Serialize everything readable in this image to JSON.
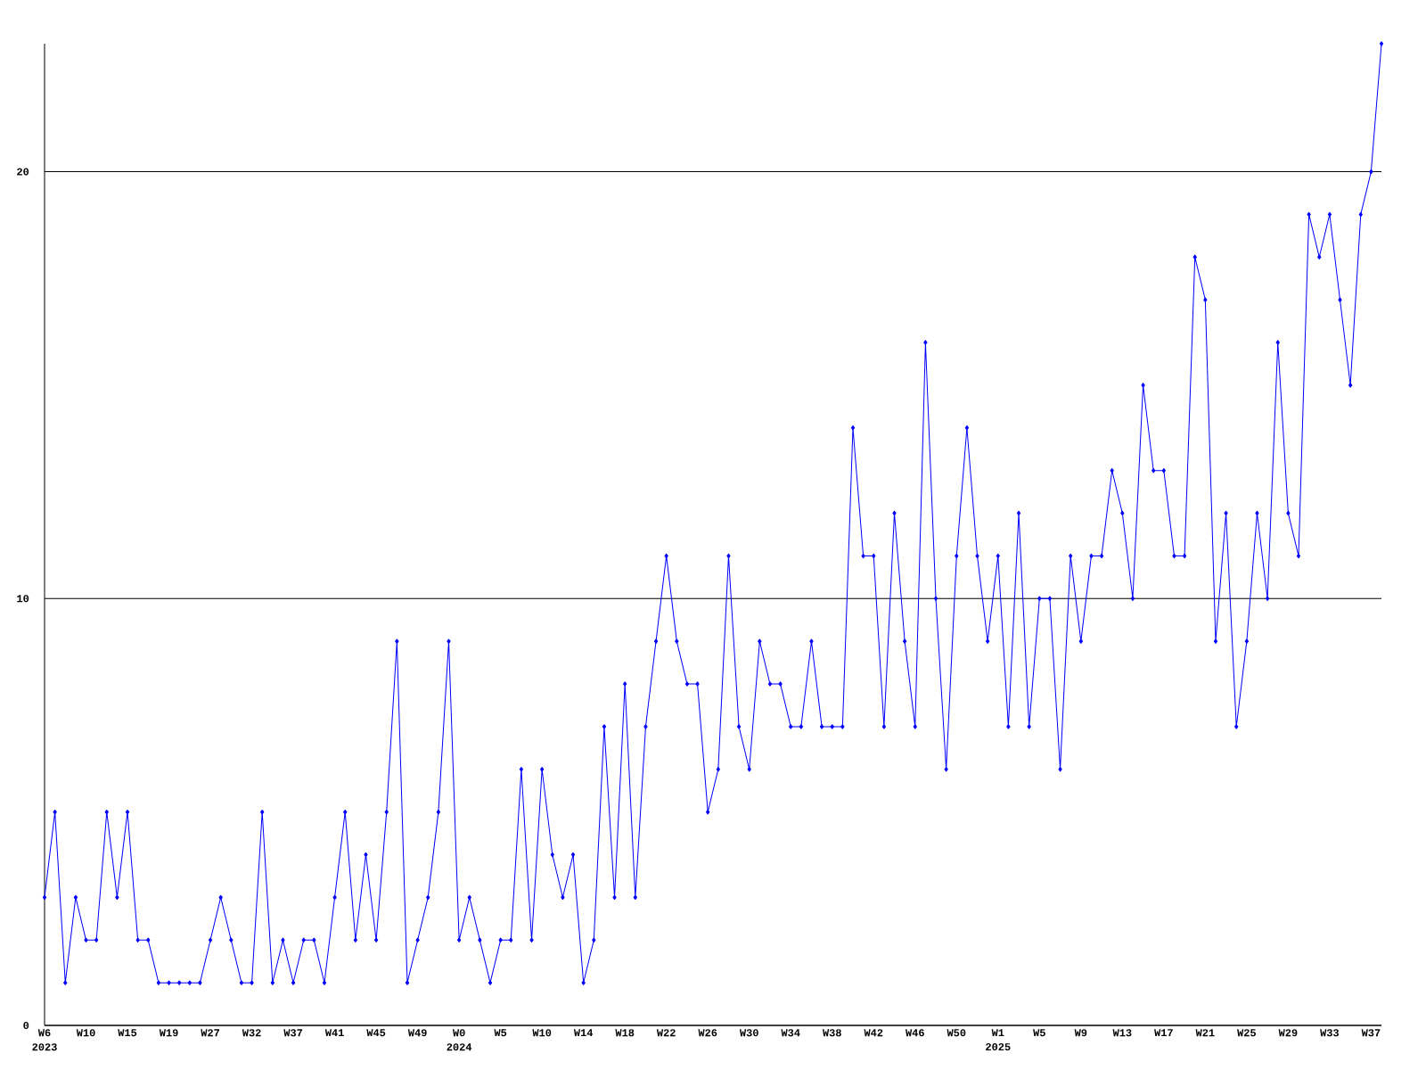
{
  "chart_data": {
    "type": "line",
    "categories": [
      "W6 2023",
      null,
      null,
      null,
      "W10",
      null,
      null,
      null,
      "W15",
      null,
      null,
      null,
      "W19",
      null,
      null,
      null,
      "W27",
      null,
      null,
      null,
      "W32",
      null,
      null,
      null,
      "W37",
      null,
      null,
      null,
      "W41",
      null,
      null,
      null,
      "W45",
      null,
      null,
      null,
      "W49",
      null,
      null,
      null,
      "W0 2024",
      null,
      null,
      null,
      "W5",
      null,
      null,
      null,
      "W10",
      null,
      null,
      null,
      "W14",
      null,
      null,
      null,
      "W18",
      null,
      null,
      null,
      "W22",
      null,
      null,
      null,
      "W26",
      null,
      null,
      null,
      "W30",
      null,
      null,
      null,
      "W34",
      null,
      null,
      null,
      "W38",
      null,
      null,
      null,
      "W42",
      null,
      null,
      null,
      "W46",
      null,
      null,
      null,
      "W50",
      null,
      null,
      null,
      "W1 2025",
      null,
      null,
      null,
      "W5",
      null,
      null,
      null,
      "W9",
      null,
      null,
      null,
      "W13",
      null,
      null,
      null,
      "W17",
      null,
      null,
      null,
      "W21",
      null,
      null,
      null,
      "W25",
      null,
      null,
      null,
      "W29",
      null,
      null,
      null,
      "W33",
      null,
      null,
      null,
      "W37",
      null
    ],
    "series": [
      {
        "color": "#0000ff",
        "values": [
          3,
          5,
          1,
          3,
          2,
          2,
          5,
          3,
          5,
          2,
          2,
          1,
          1,
          1,
          1,
          1,
          2,
          3,
          2,
          1,
          1,
          5,
          1,
          2,
          1,
          2,
          2,
          1,
          3,
          5,
          2,
          4,
          2,
          5,
          9,
          1,
          2,
          3,
          5,
          9,
          2,
          3,
          2,
          1,
          2,
          2,
          6,
          2,
          6,
          4,
          3,
          4,
          1,
          2,
          7,
          3,
          8,
          3,
          7,
          9,
          11,
          9,
          8,
          8,
          5,
          6,
          11,
          7,
          6,
          9,
          8,
          8,
          7,
          7,
          9,
          7,
          7,
          7,
          14,
          11,
          11,
          7,
          12,
          9,
          7,
          16,
          10,
          6,
          11,
          14,
          11,
          9,
          11,
          7,
          12,
          7,
          10,
          10,
          6,
          11,
          9,
          11,
          11,
          13,
          12,
          10,
          15,
          13,
          13,
          11,
          11,
          18,
          17,
          9,
          12,
          7,
          9,
          12,
          10,
          16,
          12,
          11,
          19,
          18,
          19,
          17,
          15,
          19,
          20,
          23
        ]
      }
    ],
    "ylim": [
      0,
      23
    ],
    "yticks": [
      0,
      10,
      20
    ],
    "grid": "y",
    "marker": "diamond"
  }
}
